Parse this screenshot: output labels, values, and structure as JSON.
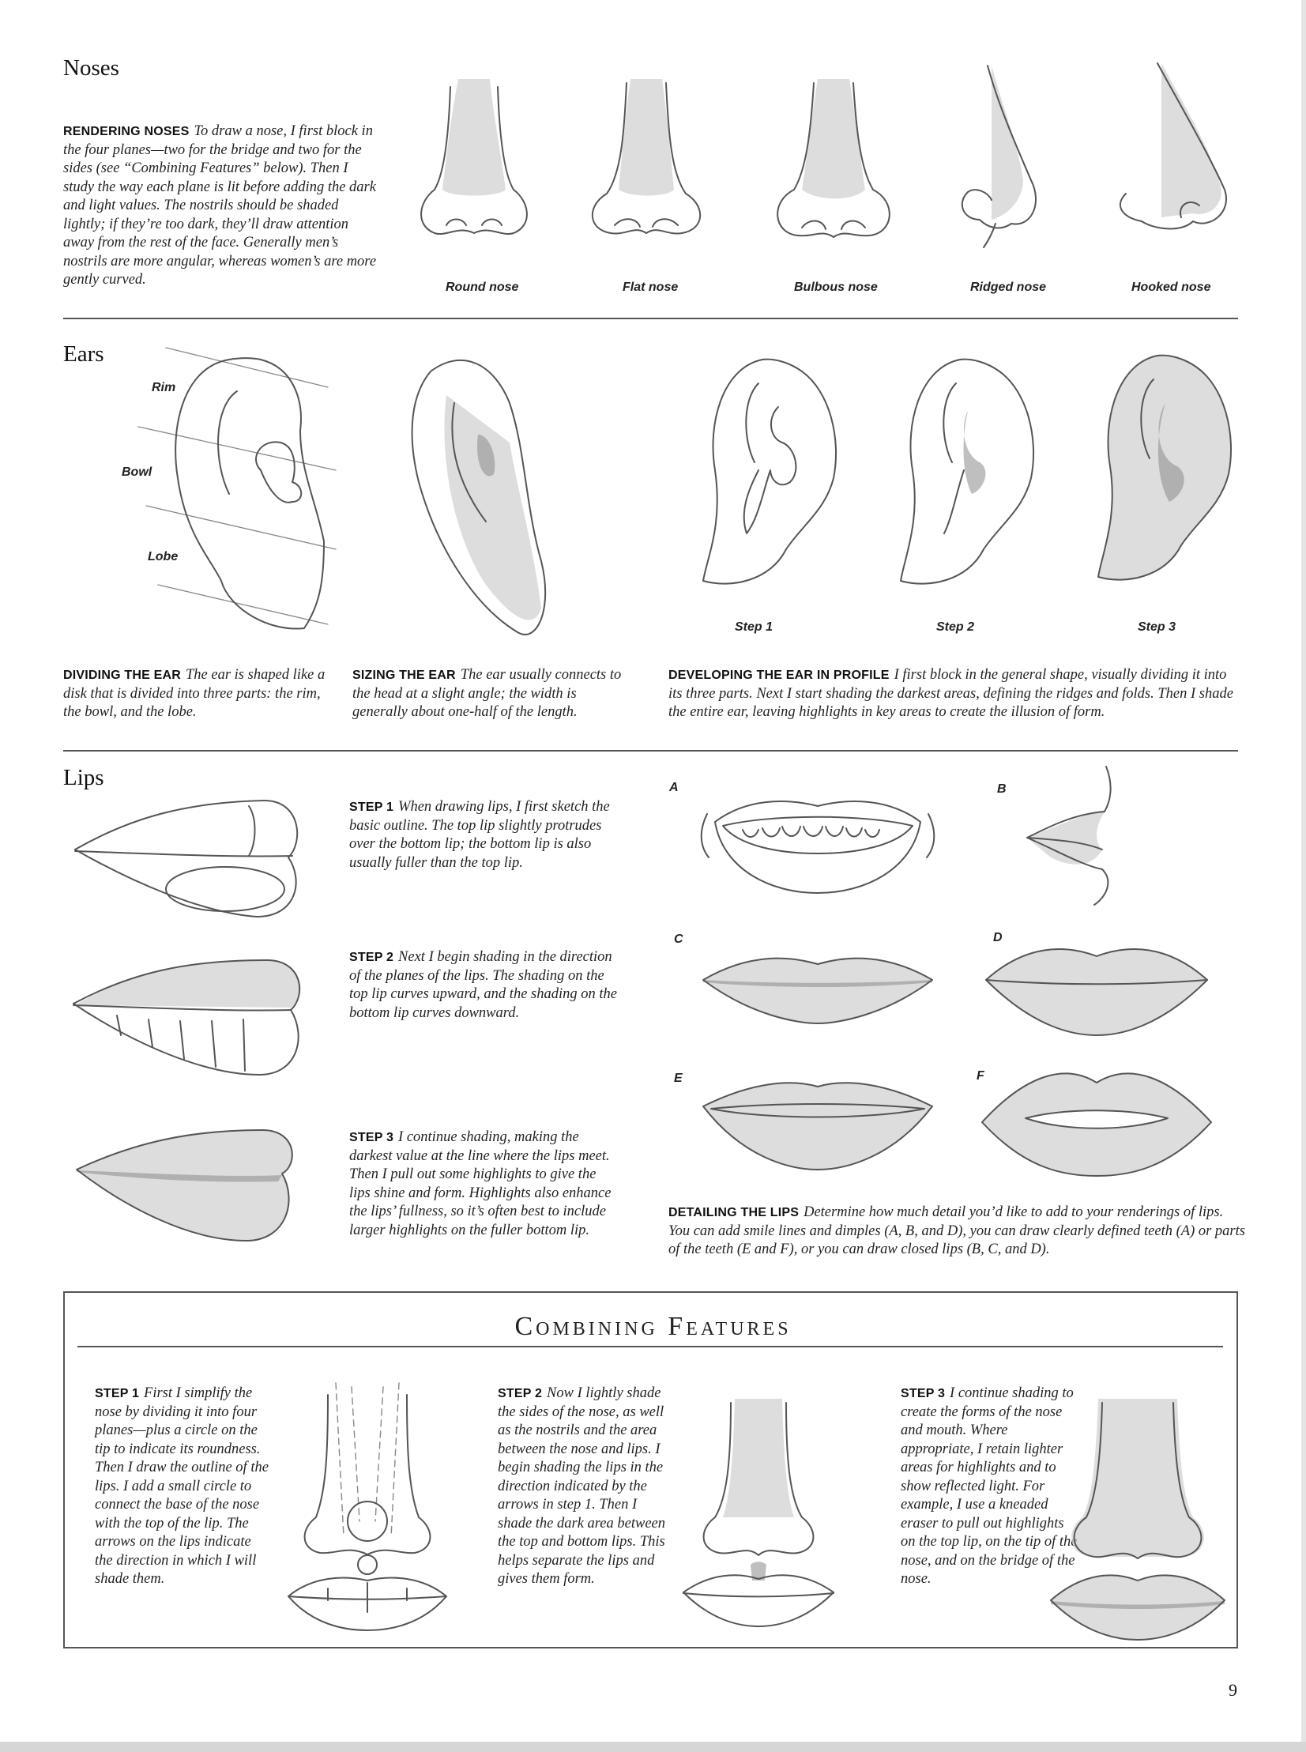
{
  "noses": {
    "heading": "Noses",
    "lead": "RENDERING NOSES",
    "text": "To draw a nose, I first block in the four planes—two for the bridge and two for the sides (see “Combining Features” below). Then I study the way each plane is lit before adding the dark and light values. The nostrils should be shaded lightly; if they’re too dark, they’ll draw attention away from the rest of the face. Generally men’s nostrils are more angular, whereas women’s are more gently curved.",
    "captions": [
      "Round nose",
      "Flat nose",
      "Bulbous nose",
      "Ridged nose",
      "Hooked nose"
    ]
  },
  "ears": {
    "heading": "Ears",
    "labels": {
      "rim": "Rim",
      "bowl": "Bowl",
      "lobe": "Lobe"
    },
    "steps": [
      "Step 1",
      "Step 2",
      "Step 3"
    ],
    "dividing_lead": "DIVIDING THE EAR",
    "dividing_text": "The ear is shaped like a disk that is divided into three parts: the rim, the bowl, and the lobe.",
    "sizing_lead": "SIZING THE EAR",
    "sizing_text": "The ear usually connects to the head at a slight angle; the width is generally about one-half of the length.",
    "profile_lead": "DEVELOPING THE EAR IN PROFILE",
    "profile_text": "I first block in the general shape, visually dividing it into its three parts. Next I start shading the darkest areas, defining the ridges and folds. Then I shade the entire ear, leaving highlights in key areas to create the illusion of form."
  },
  "lips": {
    "heading": "Lips",
    "step1_lead": "STEP 1",
    "step1_text": "When drawing lips, I first sketch the basic outline. The top lip slightly protrudes over the bottom lip; the bottom lip is also usually fuller than the top lip.",
    "step2_lead": "STEP 2",
    "step2_text": "Next I begin shading in the direction of the planes of the lips. The shading on the top lip curves upward, and the shading on the bottom lip curves downward.",
    "step3_lead": "STEP 3",
    "step3_text": "I continue shading, making the darkest value at the line where the lips meet. Then I pull out some highlights to give the lips shine and form. Highlights also enhance the lips’ fullness, so it’s often best to include larger highlights on the fuller bottom lip.",
    "letters": [
      "A",
      "B",
      "C",
      "D",
      "E",
      "F"
    ],
    "detail_lead": "DETAILING THE LIPS",
    "detail_text": "Determine how much detail you’d like to add to your renderings of lips. You can add smile lines and dimples (A, B, and D), you can draw clearly defined teeth (A) or parts of the teeth (E and F), or you can draw closed lips (B, C, and D)."
  },
  "combining": {
    "title": "Combining Features",
    "step1_lead": "STEP 1",
    "step1_text": "First I simplify the nose by dividing it into four planes—plus a circle on the tip to indicate its roundness. Then I draw the outline of the lips. I add a small circle to connect the base of the nose with the top of the lip. The arrows on the lips indicate the direction in which I will shade them.",
    "step2_lead": "STEP 2",
    "step2_text": "Now I lightly shade the sides of the nose, as well as the nostrils and the area between the nose and lips. I begin shading the lips in the direction indicated by the arrows in step 1. Then I shade the dark area between the top and bottom lips. This helps separate the lips and gives them form.",
    "step3_lead": "STEP 3",
    "step3_text": "I continue shading to create the forms of the nose and mouth. Where appropriate, I retain lighter areas for highlights and to show reflected light. For example, I use a kneaded eraser to pull out highlights on the top lip, on the tip of the nose, and on the bridge of the nose."
  },
  "page_number": "9"
}
